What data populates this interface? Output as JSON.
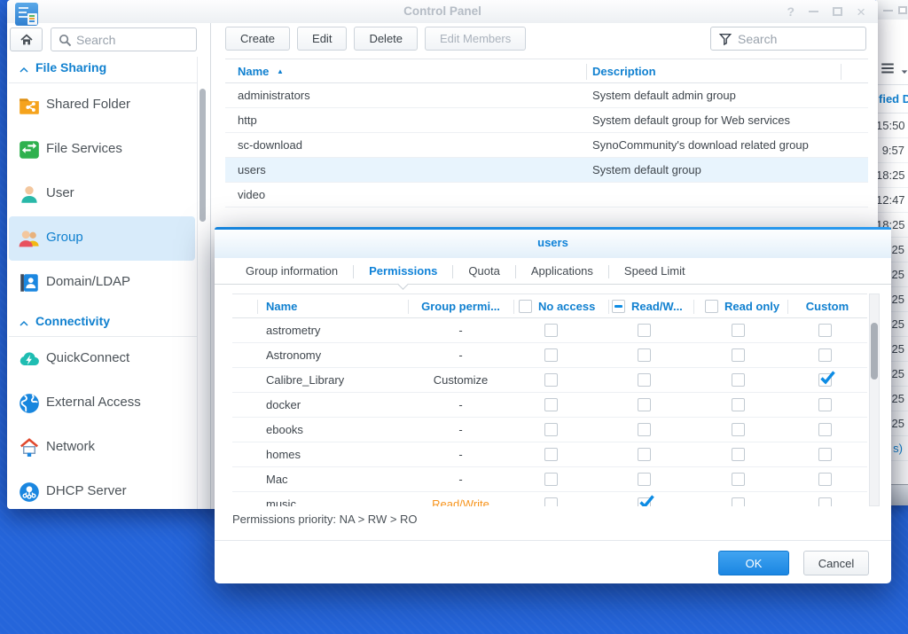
{
  "desktop": {
    "background_color": "#2565da"
  },
  "window": {
    "title": "Control Panel",
    "controls": {
      "help": "?",
      "close": "×"
    }
  },
  "sidebar": {
    "search": {
      "placeholder": "Search"
    },
    "sections": [
      {
        "label": "File Sharing",
        "items": [
          {
            "label": "Shared Folder",
            "icon": "shared-folder-icon",
            "selected": false
          },
          {
            "label": "File Services",
            "icon": "file-services-icon",
            "selected": false
          },
          {
            "label": "User",
            "icon": "user-icon",
            "selected": false
          },
          {
            "label": "Group",
            "icon": "group-icon",
            "selected": true
          },
          {
            "label": "Domain/LDAP",
            "icon": "domain-ldap-icon",
            "selected": false
          }
        ]
      },
      {
        "label": "Connectivity",
        "items": [
          {
            "label": "QuickConnect",
            "icon": "quickconnect-icon",
            "selected": false
          },
          {
            "label": "External Access",
            "icon": "external-access-icon",
            "selected": false
          },
          {
            "label": "Network",
            "icon": "network-icon",
            "selected": false
          },
          {
            "label": "DHCP Server",
            "icon": "dhcp-server-icon",
            "selected": false
          }
        ]
      }
    ]
  },
  "toolbar": {
    "buttons": [
      {
        "label": "Create",
        "enabled": true
      },
      {
        "label": "Edit",
        "enabled": true
      },
      {
        "label": "Delete",
        "enabled": true
      },
      {
        "label": "Edit Members",
        "enabled": false
      }
    ],
    "search": {
      "placeholder": "Search"
    }
  },
  "group_table": {
    "columns": [
      {
        "label": "Name",
        "sort_indicator": "▲"
      },
      {
        "label": "Description"
      }
    ],
    "rows": [
      {
        "name": "administrators",
        "description": "System default admin group",
        "selected": false
      },
      {
        "name": "http",
        "description": "System default group for Web services",
        "selected": false
      },
      {
        "name": "sc-download",
        "description": "SynoCommunity's download related group",
        "selected": false
      },
      {
        "name": "users",
        "description": "System default group",
        "selected": true
      },
      {
        "name": "video",
        "description": "",
        "selected": false
      }
    ]
  },
  "background_window": {
    "column_header_fragment": "fied D",
    "rows": [
      "15:50",
      "9:57",
      "18:25",
      "12:47",
      "18:25",
      ":25",
      ":25",
      ":25",
      ":25",
      ":25",
      ":25",
      ":25",
      ":25"
    ],
    "link_fragment": "s)"
  },
  "dialog": {
    "title": "users",
    "tabs": [
      {
        "label": "Group information",
        "active": false
      },
      {
        "label": "Permissions",
        "active": true
      },
      {
        "label": "Quota",
        "active": false
      },
      {
        "label": "Applications",
        "active": false
      },
      {
        "label": "Speed Limit",
        "active": false
      }
    ],
    "permissions_table": {
      "headers": {
        "name": "Name",
        "group_permission": "Group permi...",
        "no_access": "No access",
        "read_write": "Read/W...",
        "read_only": "Read only",
        "custom": "Custom"
      },
      "header_checkboxes": {
        "no_access": "unchecked",
        "read_write": "indeterminate",
        "read_only": "unchecked"
      },
      "rows": [
        {
          "name": "astrometry",
          "group_permission": "-",
          "warning": false,
          "no_access": false,
          "read_write": false,
          "read_only": false,
          "custom": false
        },
        {
          "name": "Astronomy",
          "group_permission": "-",
          "warning": false,
          "no_access": false,
          "read_write": false,
          "read_only": false,
          "custom": false
        },
        {
          "name": "Calibre_Library",
          "group_permission": "Customize",
          "warning": false,
          "no_access": false,
          "read_write": false,
          "read_only": false,
          "custom": true
        },
        {
          "name": "docker",
          "group_permission": "-",
          "warning": false,
          "no_access": false,
          "read_write": false,
          "read_only": false,
          "custom": false
        },
        {
          "name": "ebooks",
          "group_permission": "-",
          "warning": false,
          "no_access": false,
          "read_write": false,
          "read_only": false,
          "custom": false
        },
        {
          "name": "homes",
          "group_permission": "-",
          "warning": false,
          "no_access": false,
          "read_write": false,
          "read_only": false,
          "custom": false
        },
        {
          "name": "Mac",
          "group_permission": "-",
          "warning": false,
          "no_access": false,
          "read_write": false,
          "read_only": false,
          "custom": false
        },
        {
          "name": "music",
          "group_permission": "Read/Write",
          "warning": true,
          "no_access": false,
          "read_write": true,
          "read_only": false,
          "custom": false
        }
      ]
    },
    "note": "Permissions priority: NA > RW > RO",
    "buttons": {
      "ok": "OK",
      "cancel": "Cancel"
    },
    "accent_color": "#0f82d8",
    "warning_color": "#f7941d"
  }
}
